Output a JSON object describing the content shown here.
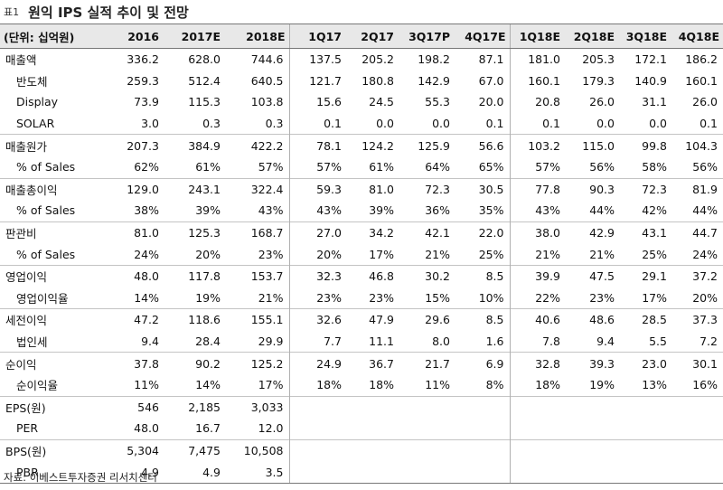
{
  "title": {
    "tag": "표1",
    "text": "원익 IPS 실적 추이 및 전망"
  },
  "header": [
    "(단위: 십억원)",
    "2016",
    "2017E",
    "2018E",
    "1Q17",
    "2Q17",
    "3Q17P",
    "4Q17E",
    "1Q18E",
    "2Q18E",
    "3Q18E",
    "4Q18E"
  ],
  "rows": [
    {
      "label": "매출액",
      "values": [
        "336.2",
        "628.0",
        "744.6",
        "137.5",
        "205.2",
        "198.2",
        "87.1",
        "181.0",
        "205.3",
        "172.1",
        "186.2"
      ],
      "sub": false,
      "gs": false
    },
    {
      "label": "반도체",
      "values": [
        "259.3",
        "512.4",
        "640.5",
        "121.7",
        "180.8",
        "142.9",
        "67.0",
        "160.1",
        "179.3",
        "140.9",
        "160.1"
      ],
      "sub": true,
      "gs": false
    },
    {
      "label": "Display",
      "values": [
        "73.9",
        "115.3",
        "103.8",
        "15.6",
        "24.5",
        "55.3",
        "20.0",
        "20.8",
        "26.0",
        "31.1",
        "26.0"
      ],
      "sub": true,
      "gs": false
    },
    {
      "label": "SOLAR",
      "values": [
        "3.0",
        "0.3",
        "0.3",
        "0.1",
        "0.0",
        "0.0",
        "0.1",
        "0.1",
        "0.0",
        "0.0",
        "0.1"
      ],
      "sub": true,
      "gs": false
    },
    {
      "label": "매출원가",
      "values": [
        "207.3",
        "384.9",
        "422.2",
        "78.1",
        "124.2",
        "125.9",
        "56.6",
        "103.2",
        "115.0",
        "99.8",
        "104.3"
      ],
      "sub": false,
      "gs": true
    },
    {
      "label": "% of Sales",
      "values": [
        "62%",
        "61%",
        "57%",
        "57%",
        "61%",
        "64%",
        "65%",
        "57%",
        "56%",
        "58%",
        "56%"
      ],
      "sub": true,
      "gs": false
    },
    {
      "label": "매출총이익",
      "values": [
        "129.0",
        "243.1",
        "322.4",
        "59.3",
        "81.0",
        "72.3",
        "30.5",
        "77.8",
        "90.3",
        "72.3",
        "81.9"
      ],
      "sub": false,
      "gs": true
    },
    {
      "label": "% of Sales",
      "values": [
        "38%",
        "39%",
        "43%",
        "43%",
        "39%",
        "36%",
        "35%",
        "43%",
        "44%",
        "42%",
        "44%"
      ],
      "sub": true,
      "gs": false
    },
    {
      "label": "판관비",
      "values": [
        "81.0",
        "125.3",
        "168.7",
        "27.0",
        "34.2",
        "42.1",
        "22.0",
        "38.0",
        "42.9",
        "43.1",
        "44.7"
      ],
      "sub": false,
      "gs": true
    },
    {
      "label": "% of Sales",
      "values": [
        "24%",
        "20%",
        "23%",
        "20%",
        "17%",
        "21%",
        "25%",
        "21%",
        "21%",
        "25%",
        "24%"
      ],
      "sub": true,
      "gs": false
    },
    {
      "label": "영업이익",
      "values": [
        "48.0",
        "117.8",
        "153.7",
        "32.3",
        "46.8",
        "30.2",
        "8.5",
        "39.9",
        "47.5",
        "29.1",
        "37.2"
      ],
      "sub": false,
      "gs": true
    },
    {
      "label": "영업이익율",
      "values": [
        "14%",
        "19%",
        "21%",
        "23%",
        "23%",
        "15%",
        "10%",
        "22%",
        "23%",
        "17%",
        "20%"
      ],
      "sub": true,
      "gs": false
    },
    {
      "label": "세전이익",
      "values": [
        "47.2",
        "118.6",
        "155.1",
        "32.6",
        "47.9",
        "29.6",
        "8.5",
        "40.6",
        "48.6",
        "28.5",
        "37.3"
      ],
      "sub": false,
      "gs": true
    },
    {
      "label": "법인세",
      "values": [
        "9.4",
        "28.4",
        "29.9",
        "7.7",
        "11.1",
        "8.0",
        "1.6",
        "7.8",
        "9.4",
        "5.5",
        "7.2"
      ],
      "sub": true,
      "gs": false
    },
    {
      "label": "순이익",
      "values": [
        "37.8",
        "90.2",
        "125.2",
        "24.9",
        "36.7",
        "21.7",
        "6.9",
        "32.8",
        "39.3",
        "23.0",
        "30.1"
      ],
      "sub": false,
      "gs": true
    },
    {
      "label": "순이익율",
      "values": [
        "11%",
        "14%",
        "17%",
        "18%",
        "18%",
        "11%",
        "8%",
        "18%",
        "19%",
        "13%",
        "16%"
      ],
      "sub": true,
      "gs": false
    },
    {
      "label": "EPS(원)",
      "values": [
        "546",
        "2,185",
        "3,033",
        "",
        "",
        "",
        "",
        "",
        "",
        "",
        ""
      ],
      "sub": false,
      "gs": true
    },
    {
      "label": "PER",
      "values": [
        "48.0",
        "16.7",
        "12.0",
        "",
        "",
        "",
        "",
        "",
        "",
        "",
        ""
      ],
      "sub": true,
      "gs": false
    },
    {
      "label": "BPS(원)",
      "values": [
        "5,304",
        "7,475",
        "10,508",
        "",
        "",
        "",
        "",
        "",
        "",
        "",
        ""
      ],
      "sub": false,
      "gs": true
    },
    {
      "label": "PBR",
      "values": [
        "4.9",
        "4.9",
        "3.5",
        "",
        "",
        "",
        "",
        "",
        "",
        "",
        ""
      ],
      "sub": true,
      "gs": false
    }
  ],
  "source": "자료: 이베스트투자증권 리서치센터"
}
